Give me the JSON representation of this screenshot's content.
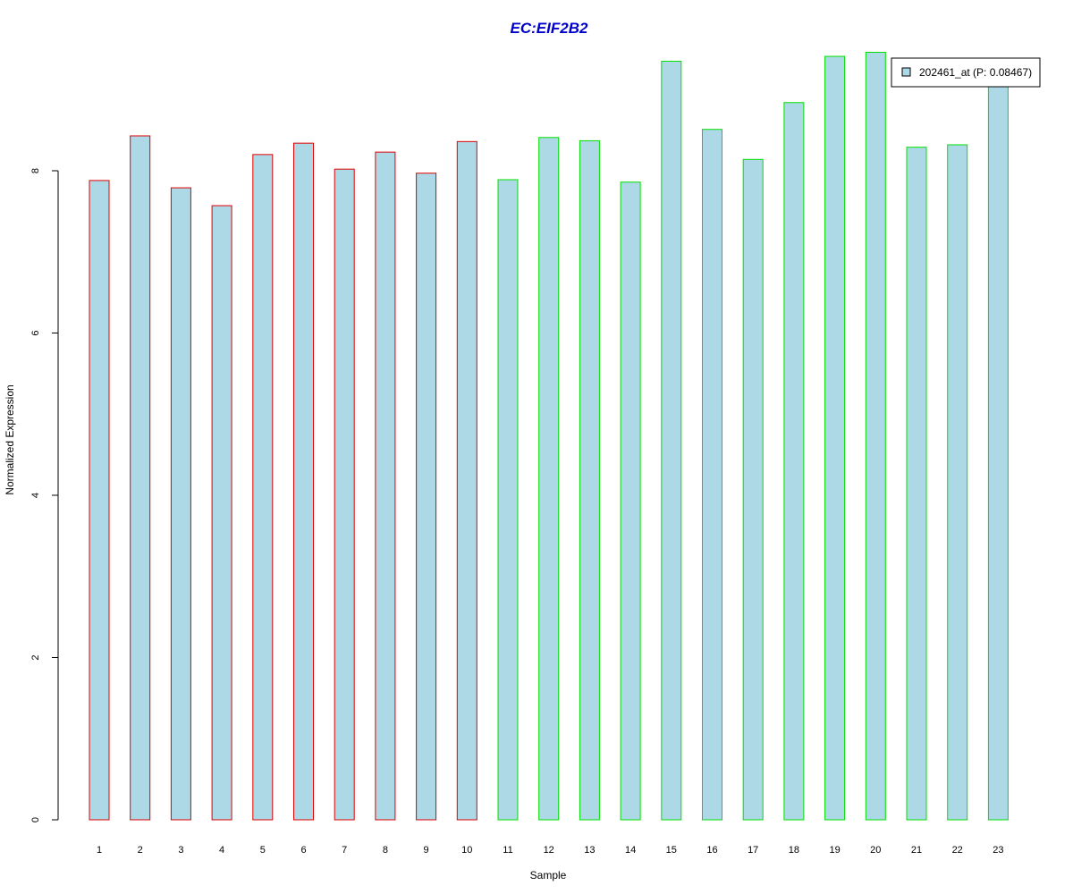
{
  "chart_data": {
    "type": "bar",
    "title": "EC:EIF2B2",
    "xlabel": "Sample",
    "ylabel": "Normalized Expression",
    "categories": [
      "1",
      "2",
      "3",
      "4",
      "5",
      "6",
      "7",
      "8",
      "9",
      "10",
      "11",
      "12",
      "13",
      "14",
      "15",
      "16",
      "17",
      "18",
      "19",
      "20",
      "21",
      "22",
      "23"
    ],
    "values": [
      7.88,
      8.43,
      7.79,
      7.57,
      8.2,
      8.34,
      8.02,
      8.23,
      7.97,
      8.36,
      7.89,
      8.41,
      8.37,
      7.86,
      9.35,
      8.51,
      8.14,
      8.84,
      9.41,
      9.46,
      8.29,
      8.32,
      9.08
    ],
    "series": [
      {
        "name": "202461_at (P: 0.08467)",
        "values": [
          7.88,
          8.43,
          7.79,
          7.57,
          8.2,
          8.34,
          8.02,
          8.23,
          7.97,
          8.36,
          7.89,
          8.41,
          8.37,
          7.86,
          9.35,
          8.51,
          8.14,
          8.84,
          9.41,
          9.46,
          8.29,
          8.32,
          9.08
        ]
      }
    ],
    "group_border_colors": [
      "#e00000",
      "#e00000",
      "#e00000",
      "#e00000",
      "#e00000",
      "#e00000",
      "#e00000",
      "#e00000",
      "#e00000",
      "#e00000",
      "#00e000",
      "#00e000",
      "#00e000",
      "#00e000",
      "#00e000",
      "#00e000",
      "#00e000",
      "#00e000",
      "#00e000",
      "#00e000",
      "#00e000",
      "#00e000",
      "#00e000"
    ],
    "yticks": [
      0,
      2,
      4,
      6,
      8
    ],
    "ylim": [
      0,
      9.5
    ],
    "grid": false,
    "legend_position": "top-right",
    "colors": {
      "bar_fill": "#add8e6",
      "title": "#0000cc",
      "axis": "#000000"
    }
  }
}
